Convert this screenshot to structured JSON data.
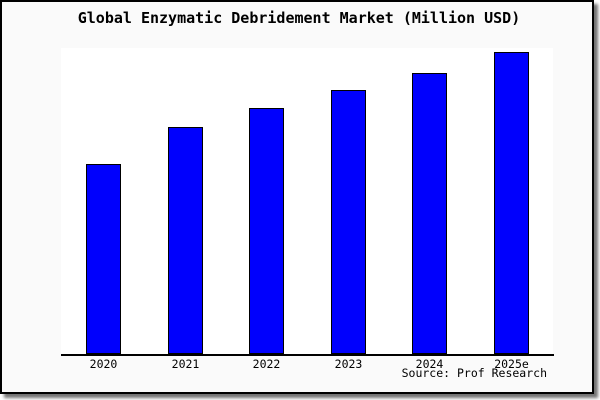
{
  "title": "Global Enzymatic Debridement Market (Million USD)",
  "source_note": "Source: Prof Research",
  "colors": {
    "bar_fill": "#0000fd",
    "bar_border": "#000000",
    "figure_background": "#fafafa",
    "plot_background": "#ffffff",
    "axis_line": "#000000",
    "frame_border": "#000000"
  },
  "chart_data": {
    "type": "bar",
    "title": "Global Enzymatic Debridement Market (Million USD)",
    "categories": [
      "2020",
      "2021",
      "2022",
      "2023",
      "2024",
      "2025e"
    ],
    "values": [
      190,
      227,
      246,
      264,
      281,
      302
    ],
    "values_unit": "relative height (no y-axis scale shown in figure)",
    "xlabel": "",
    "ylabel": "",
    "ylim": [
      0,
      306
    ],
    "grid": false,
    "legend": "none",
    "y_axis_visible": false,
    "bar_color": "#0000fd",
    "bar_border_color": "#000000",
    "annotation": "Source: Prof Research"
  }
}
